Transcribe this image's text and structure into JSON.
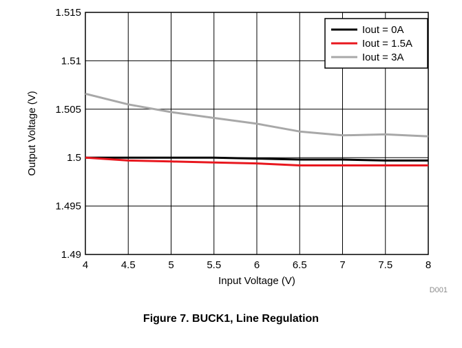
{
  "caption": "Figure 7. BUCK1, Line Regulation",
  "figure_code": "D001",
  "colors": {
    "grid": "#000000",
    "frame": "#000000"
  },
  "chart_data": {
    "type": "line",
    "title": "",
    "xlabel": "Input Voltage (V)",
    "ylabel": "Output Voltage (V)",
    "xlim": [
      4,
      8
    ],
    "ylim": [
      1.49,
      1.515
    ],
    "xticks": [
      4,
      4.5,
      5,
      5.5,
      6,
      6.5,
      7,
      7.5,
      8
    ],
    "xtick_labels": [
      "4",
      "4.5",
      "5",
      "5.5",
      "6",
      "6.5",
      "7",
      "7.5",
      "8"
    ],
    "yticks": [
      1.49,
      1.495,
      1.5,
      1.505,
      1.51,
      1.515
    ],
    "ytick_labels": [
      "1.49",
      "1.495",
      "1.5",
      "1.505",
      "1.51",
      "1.515"
    ],
    "grid": true,
    "legend_position": "top-right",
    "x": [
      4,
      4.5,
      5,
      5.5,
      6,
      6.5,
      7,
      7.5,
      8
    ],
    "series": [
      {
        "name": "Iout = 0A",
        "color": "#000000",
        "values": [
          1.5,
          1.5,
          1.5,
          1.5,
          1.4999,
          1.4998,
          1.4998,
          1.4997,
          1.4997
        ]
      },
      {
        "name": "Iout = 1.5A",
        "color": "#e8171e",
        "values": [
          1.5,
          1.4997,
          1.4996,
          1.4995,
          1.4994,
          1.4992,
          1.4992,
          1.4992,
          1.4992
        ]
      },
      {
        "name": "Iout = 3A",
        "color": "#a8a8a8",
        "values": [
          1.5066,
          1.5055,
          1.5047,
          1.5041,
          1.5035,
          1.5027,
          1.5023,
          1.5024,
          1.5022
        ]
      }
    ]
  }
}
